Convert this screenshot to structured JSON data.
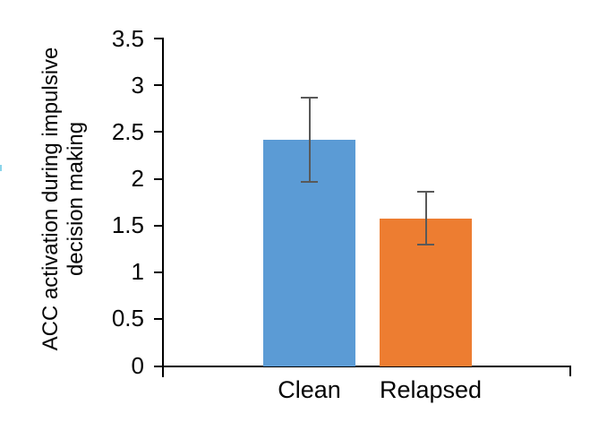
{
  "chart_data": {
    "type": "bar",
    "title": "",
    "categories": [
      "Clean",
      "Relapsed"
    ],
    "values": [
      2.42,
      1.58
    ],
    "errors": [
      0.46,
      0.29
    ],
    "ylabel": "ACC activation during impulsive decision making",
    "ylabel_line1": "ACC activation during impulsive",
    "ylabel_line2": "decision making",
    "xlabel": "",
    "ylim": [
      0,
      3.5
    ],
    "ytick_step": 0.5,
    "ytick_labels_top_to_bottom": [
      "3.5",
      "3",
      "2.5",
      "2",
      "1.5",
      "1",
      "0.5",
      "0"
    ],
    "grid": false,
    "legend": false,
    "bar_colors": [
      "#5B9BD5",
      "#ED7D31"
    ],
    "error_bar_color": "#595959",
    "axis_color": "#000000",
    "text_color": "#040404",
    "background_color": "#FFFFFF",
    "edge_artifact_color": "#8AD4EA"
  }
}
